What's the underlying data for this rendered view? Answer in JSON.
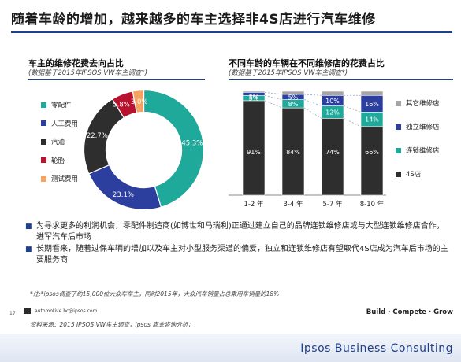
{
  "title": "随着车龄的增加，越来越多的车主选择非4S店进行汽车维修",
  "left": {
    "title": "车主的维修花费去向占比",
    "subtitle": "(数据基于2015年IPSOS VW车主调查*)"
  },
  "right": {
    "title": "不同车龄的车辆在不同维修店的花费占比",
    "subtitle": "(数据基于2015年IPSOS VW车主调查*)"
  },
  "chart_data": [
    {
      "type": "pie",
      "variant": "donut",
      "categories": [
        "零配件",
        "人工费用",
        "汽油",
        "轮胎",
        "测试费用"
      ],
      "values": [
        45.3,
        23.1,
        22.7,
        5.8,
        3.0
      ],
      "labels": [
        "45.3%",
        "23.1%",
        "22.7%",
        "5.8%",
        "3.0%"
      ],
      "colors": [
        "#1fa99a",
        "#2c3e9e",
        "#2e2e2e",
        "#b8122e",
        "#f4a460"
      ],
      "legend": "left"
    },
    {
      "type": "bar",
      "stacked": true,
      "percent": true,
      "categories": [
        "1-2 年",
        "3-4 年",
        "5-7 年",
        "8-10 年"
      ],
      "series": [
        {
          "name": "4S店",
          "values": [
            91,
            84,
            74,
            66
          ],
          "labels": [
            "91%",
            "84%",
            "74%",
            "66%"
          ],
          "color": "#2e2e2e"
        },
        {
          "name": "连锁维修店",
          "values": [
            5,
            8,
            12,
            14
          ],
          "labels": [
            "5%",
            "8%",
            "12%",
            "14%"
          ],
          "color": "#1fa99a"
        },
        {
          "name": "独立维修店",
          "values": [
            3,
            5,
            10,
            16
          ],
          "labels": [
            "",
            "5%",
            "10%",
            "16%"
          ],
          "color": "#2c3e9e"
        },
        {
          "name": "其它维修店",
          "values": [
            1,
            3,
            4,
            4
          ],
          "labels": [
            "",
            "",
            "",
            ""
          ],
          "color": "#a5a5a5"
        }
      ],
      "top_labels": [
        "3%",
        "",
        "",
        ""
      ],
      "ylim": [
        0,
        100
      ],
      "legend": "right"
    }
  ],
  "bullets": [
    "为寻求更多的利润机会，零配件制造商(如博世和马瑞利)正通过建立自己的品牌连锁维修店或与大型连锁维修店合作，进军汽车后市场",
    "长期看来，随着过保车辆的增加以及车主对小型服务渠道的偏爱，独立和连锁维修店有望取代4S店成为汽车后市场的主要服务商"
  ],
  "note": "*注:*ipsos调查了约15,000位大众车车主，同时2015年，大众汽车销量占总乘用车销量的18%",
  "page_number": "17",
  "email": "automotive.bc@ipsos.com",
  "source": "资料来源：2015 IPSOS VW车主调查，Ipsos 商业咨询分析；",
  "tagline": "Build · Compete · Grow",
  "brand": "Ipsos Business Consulting"
}
